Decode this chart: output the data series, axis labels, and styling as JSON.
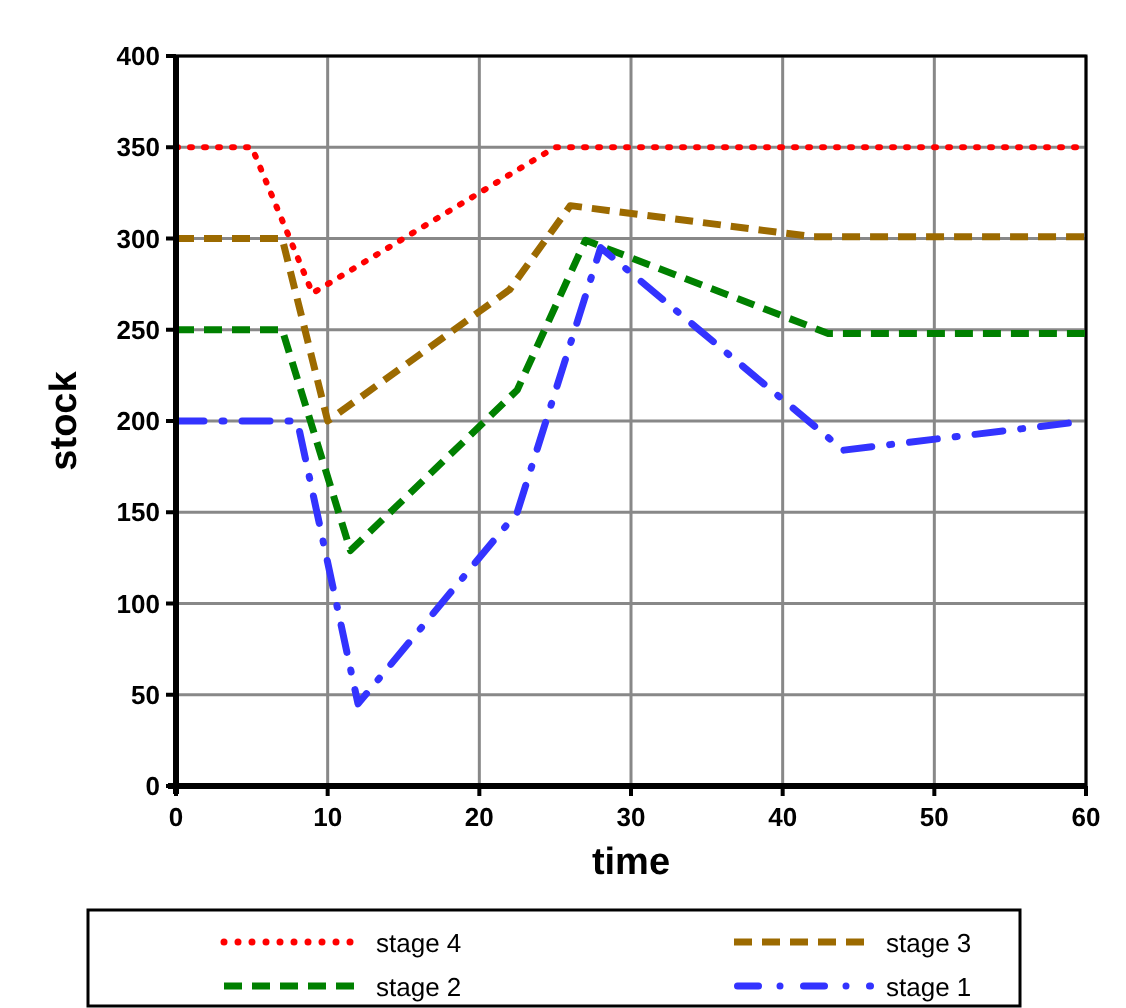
{
  "chart_data": {
    "type": "line",
    "xlabel": "time",
    "ylabel": "stock",
    "xlim": [
      0,
      60
    ],
    "xticks": [
      0,
      10,
      20,
      30,
      40,
      50,
      60
    ],
    "ylim": [
      0,
      400
    ],
    "yticks": [
      0,
      50,
      100,
      150,
      200,
      250,
      300,
      350,
      400
    ],
    "grid": true,
    "legend": "bottom",
    "series": [
      {
        "name": "stage 4",
        "color": "#ff0000",
        "line_style": "dotted",
        "x": [
          0,
          5,
          9,
          25,
          60
        ],
        "values": [
          350,
          350,
          270,
          350,
          350
        ]
      },
      {
        "name": "stage 3",
        "color": "#9c6a00",
        "line_style": "dashed",
        "x": [
          0,
          7,
          10,
          20,
          22,
          26,
          42,
          60
        ],
        "values": [
          300,
          300,
          200,
          260,
          272,
          318,
          301,
          301
        ]
      },
      {
        "name": "stage 2",
        "color": "#008000",
        "line_style": "dashed",
        "x": [
          0,
          7,
          11.5,
          22.5,
          27,
          43,
          60
        ],
        "values": [
          250,
          250,
          129,
          217,
          299,
          248,
          248
        ]
      },
      {
        "name": "stage 1",
        "color": "#3333ff",
        "line_style": "dashdot",
        "x": [
          0,
          8,
          12,
          22.5,
          28,
          44,
          60
        ],
        "values": [
          200,
          200,
          45,
          150,
          295,
          184,
          200
        ]
      }
    ]
  }
}
